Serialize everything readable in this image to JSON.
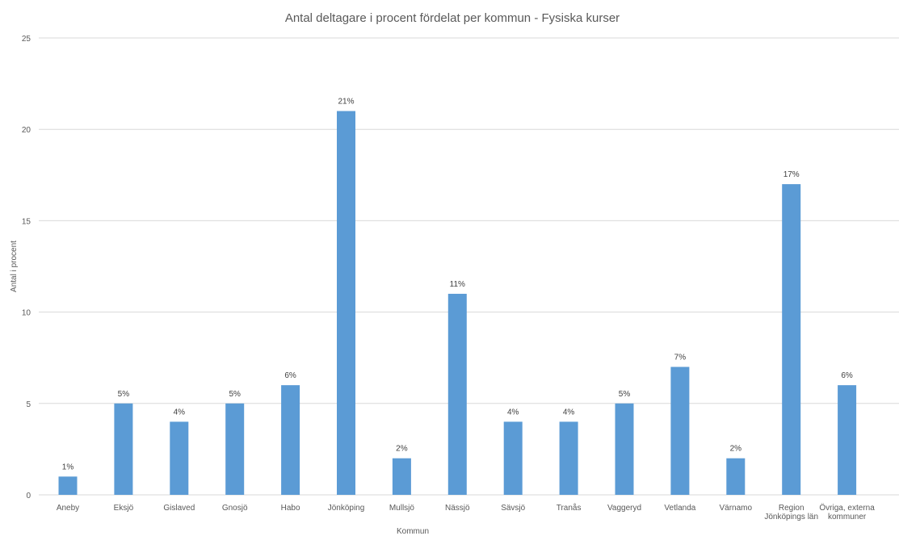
{
  "chart_data": {
    "type": "bar",
    "title": "Antal deltagare i procent fördelat per kommun - Fysiska kurser",
    "xlabel": "Kommun",
    "ylabel": "Antal i procent",
    "ylim": [
      0,
      25
    ],
    "yticks": [
      0,
      5,
      10,
      15,
      20,
      25
    ],
    "grid": true,
    "legend": "none",
    "bar_color": "#5b9bd5",
    "categories": [
      [
        "Aneby"
      ],
      [
        "Eksjö"
      ],
      [
        "Gislaved"
      ],
      [
        "Gnosjö"
      ],
      [
        "Habo"
      ],
      [
        "Jönköping"
      ],
      [
        "Mullsjö"
      ],
      [
        "Nässjö"
      ],
      [
        "Sävsjö"
      ],
      [
        "Tranås"
      ],
      [
        "Vaggeryd"
      ],
      [
        "Vetlanda"
      ],
      [
        "Värnamo"
      ],
      [
        "Region",
        "Jönköpings län"
      ],
      [
        "Övriga, externa",
        "kommuner"
      ]
    ],
    "values": [
      1,
      5,
      4,
      5,
      6,
      21,
      2,
      11,
      4,
      4,
      5,
      7,
      2,
      17,
      6
    ],
    "data_labels": [
      "1%",
      "5%",
      "4%",
      "5%",
      "6%",
      "21%",
      "2%",
      "11%",
      "4%",
      "4%",
      "5%",
      "7%",
      "2%",
      "17%",
      "6%"
    ]
  }
}
